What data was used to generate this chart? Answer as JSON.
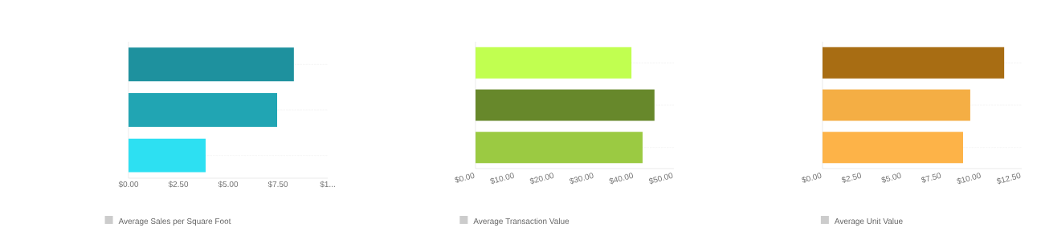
{
  "chart_data": [
    {
      "type": "bar",
      "orientation": "horizontal",
      "categories": [
        null,
        null,
        null
      ],
      "grid": "y",
      "legend": "bottom",
      "xlim": [
        0,
        10
      ],
      "xticks": [
        {
          "value": 0,
          "label": "$0.00"
        },
        {
          "value": 2.5,
          "label": "$2.50"
        },
        {
          "value": 5,
          "label": "$5.00"
        },
        {
          "value": 7.5,
          "label": "$7.50"
        },
        {
          "value": 10,
          "label": "$1..."
        }
      ],
      "series": [
        {
          "name": "Average Sales per Square Foot",
          "colors": [
            "#1e919e",
            "#21a5b3",
            "#2de0f2"
          ],
          "values": [
            8.3,
            7.46,
            3.87
          ]
        }
      ]
    },
    {
      "type": "bar",
      "orientation": "horizontal",
      "categories": [
        null,
        null,
        null
      ],
      "grid": "y",
      "legend": "bottom",
      "xlim": [
        0,
        50
      ],
      "xticks": [
        {
          "value": 0,
          "label": "$0.00"
        },
        {
          "value": 10,
          "label": "$10.00"
        },
        {
          "value": 20,
          "label": "$20.00"
        },
        {
          "value": 30,
          "label": "$30.00"
        },
        {
          "value": 40,
          "label": "$40.00"
        },
        {
          "value": 50,
          "label": "$50.00"
        }
      ],
      "series": [
        {
          "name": "Average Transaction Value",
          "colors": [
            "#c1ff50",
            "#67882b",
            "#9bca42"
          ],
          "values": [
            39.3,
            45.1,
            42.1
          ]
        }
      ]
    },
    {
      "type": "bar",
      "orientation": "horizontal",
      "categories": [
        null,
        null,
        null
      ],
      "grid": "y",
      "legend": "bottom",
      "xlim": [
        0,
        12.5
      ],
      "xticks": [
        {
          "value": 0,
          "label": "$0.00"
        },
        {
          "value": 2.5,
          "label": "$2.50"
        },
        {
          "value": 5,
          "label": "$5.00"
        },
        {
          "value": 7.5,
          "label": "$7.50"
        },
        {
          "value": 10,
          "label": "$10.00"
        },
        {
          "value": 12.5,
          "label": "$12.50"
        }
      ],
      "series": [
        {
          "name": "Average Unit Value",
          "colors": [
            "#a86d13",
            "#f4ae44",
            "#fdb348"
          ],
          "values": [
            11.4,
            9.27,
            8.82
          ]
        }
      ]
    }
  ]
}
